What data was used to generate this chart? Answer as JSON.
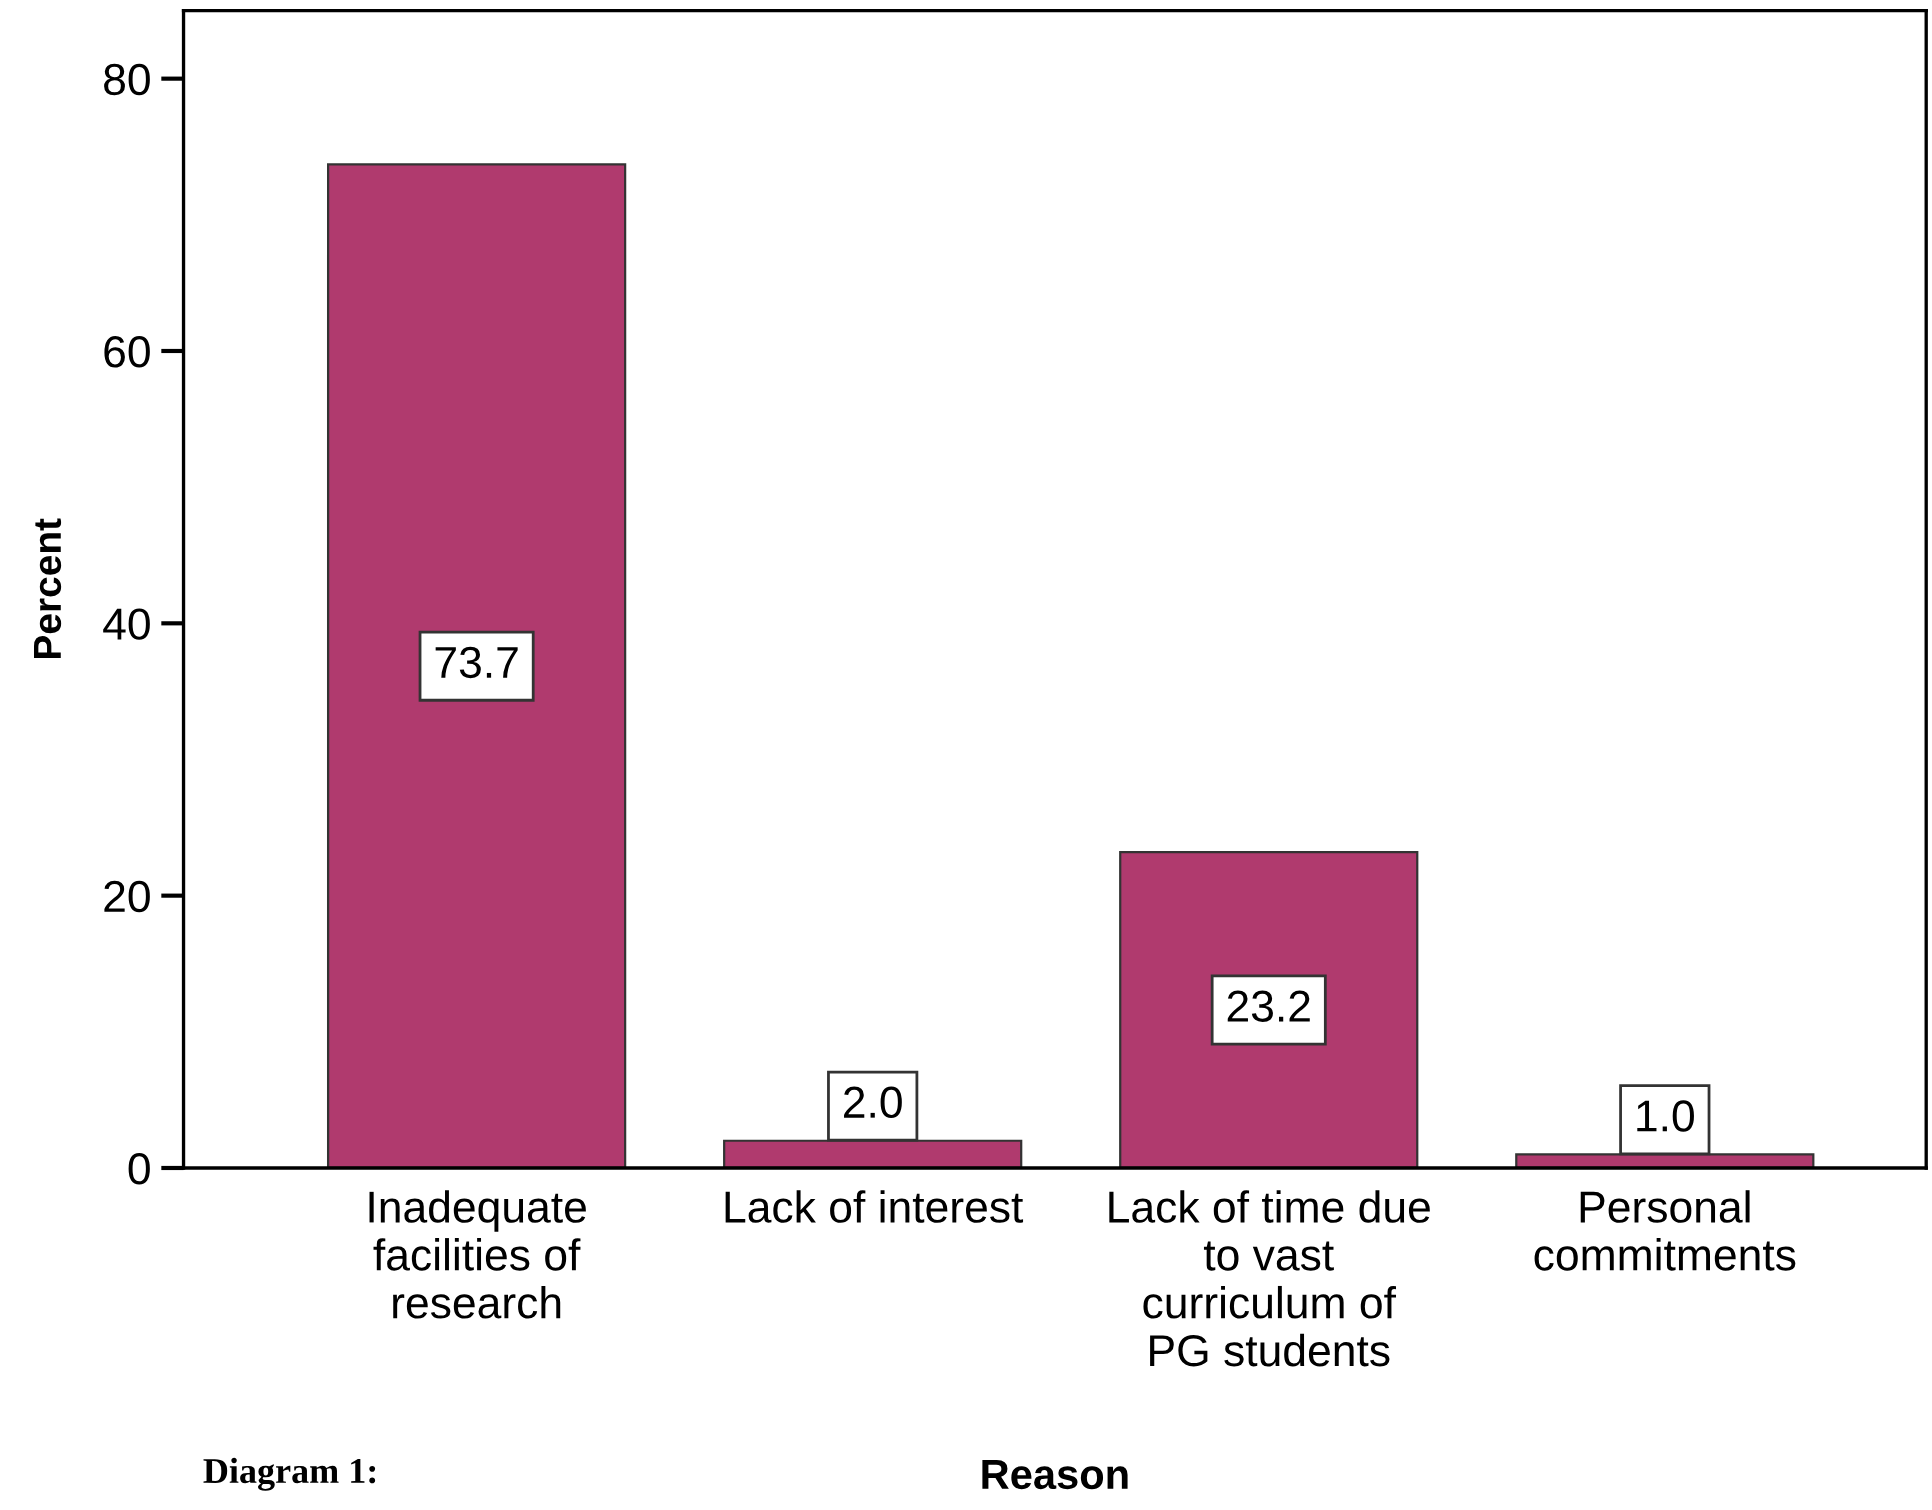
{
  "chart_data": {
    "type": "bar",
    "xlabel": "Reason",
    "ylabel": "Percent",
    "categories": [
      "Inadequate\nfacilities of\nresearch",
      "Lack of interest",
      "Lack of time due\nto vast\ncurriculum of\nPG students",
      "Personal\ncommitments"
    ],
    "values": [
      73.7,
      2.0,
      23.2,
      1.0
    ],
    "color": "#b03a6e",
    "ylim": [
      0,
      85
    ],
    "yticks": [
      0,
      20,
      40,
      60,
      80
    ],
    "grid": false,
    "value_labels": [
      "73.7",
      "2.0",
      "23.2",
      "1.0"
    ],
    "annotations": [
      "Diagram 1:"
    ]
  }
}
